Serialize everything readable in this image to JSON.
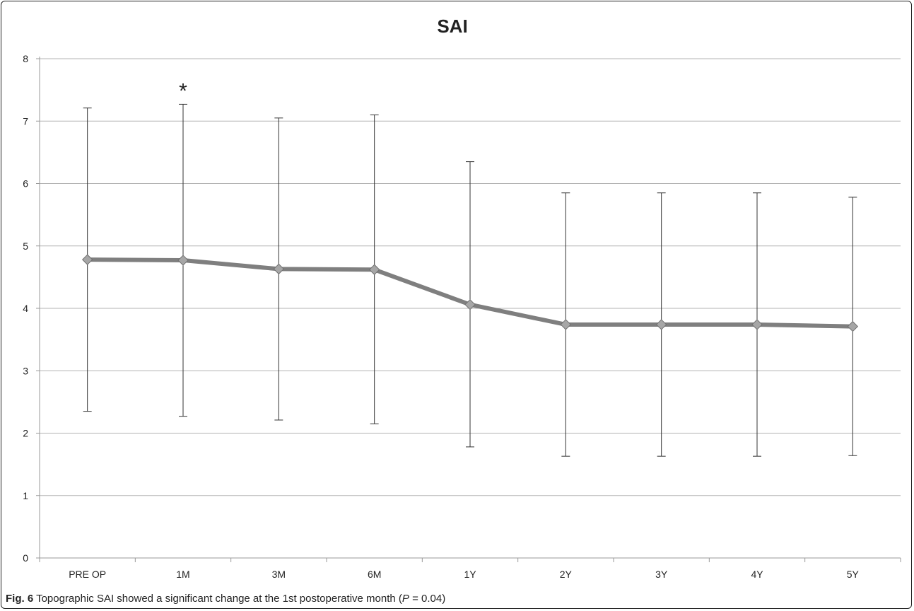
{
  "chart_data": {
    "type": "line",
    "title": "SAI",
    "categories": [
      "PRE OP",
      "1M",
      "3M",
      "6M",
      "1Y",
      "2Y",
      "3Y",
      "4Y",
      "5Y"
    ],
    "series": [
      {
        "values": [
          4.78,
          4.77,
          4.63,
          4.62,
          4.06,
          3.74,
          3.74,
          3.74,
          3.71
        ],
        "error_upper": [
          7.21,
          7.27,
          7.05,
          7.1,
          6.35,
          5.85,
          5.85,
          5.85,
          5.78
        ],
        "error_lower": [
          2.35,
          2.27,
          2.21,
          2.15,
          1.78,
          1.63,
          1.63,
          1.63,
          1.64
        ],
        "color": "#7f7f7f",
        "marker_color": "#a6a6a6"
      }
    ],
    "ylim": [
      0,
      8
    ],
    "yticks": [
      0,
      1,
      2,
      3,
      4,
      5,
      6,
      7,
      8
    ],
    "grid": true,
    "annotations": [
      {
        "text": "*",
        "category": "1M",
        "y": 7.6
      }
    ]
  },
  "caption": {
    "label": "Fig. 6",
    "text_before": " Topographic SAI showed a significant change at the 1st postoperative month (",
    "p_symbol": "P",
    "text_after": " = 0.04)"
  }
}
